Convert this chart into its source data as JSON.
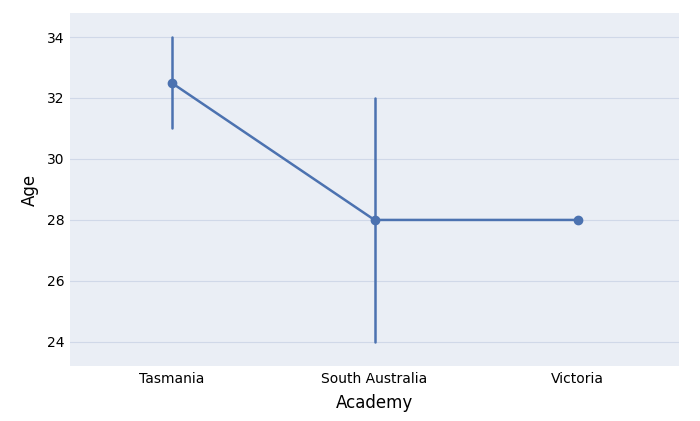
{
  "categories": [
    "Tasmania",
    "South Australia",
    "Victoria"
  ],
  "means": [
    32.5,
    28.0,
    28.0
  ],
  "ci_low": [
    31.0,
    24.0,
    27.95
  ],
  "ci_high": [
    34.0,
    32.0,
    28.05
  ],
  "line_color": "#4c72b0",
  "bg_color": "#eaeef5",
  "axes_bg_color": "#eaeef5",
  "fig_bg_color": "#ffffff",
  "xlabel": "Academy",
  "ylabel": "Age",
  "yticks": [
    24,
    26,
    28,
    30,
    32,
    34
  ],
  "ylim": [
    23.2,
    34.8
  ],
  "xlim": [
    -0.5,
    2.5
  ],
  "marker_size": 6,
  "line_width": 1.8,
  "grid_color": "#d0d8e8",
  "tick_fontsize": 10,
  "label_fontsize": 12
}
